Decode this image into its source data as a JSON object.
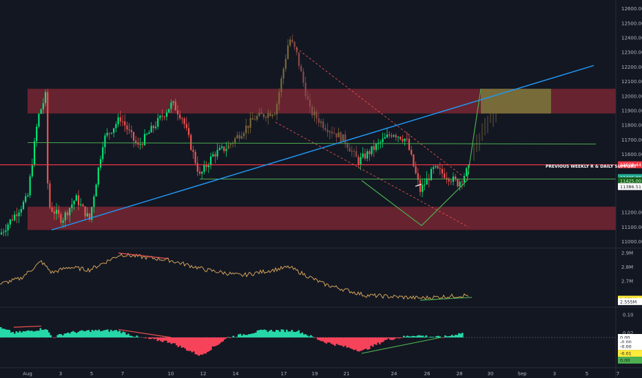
{
  "chart_data": {
    "type": "candlestick",
    "symbol_panel": {
      "y_ticks": [
        "12600.00",
        "12500.00",
        "12400.00",
        "12300.00",
        "12200.00",
        "12100.00",
        "12000.00",
        "11900.00",
        "11800.00",
        "11700.00",
        "11600.00",
        "11200.00",
        "11100.00",
        "11000.00"
      ],
      "ylim": [
        10960,
        12660
      ],
      "price_tags": [
        {
          "label": "11528.44",
          "bg": "#f23645",
          "fg": "#ffffff",
          "value": 11528
        },
        {
          "label": "11425.00",
          "bg": "#22ab94",
          "fg": "#ffffff",
          "value": 11440
        },
        {
          "label": "11425.00",
          "bg": "#1b5e20",
          "fg": "#b6ffb0",
          "value": 11418
        },
        {
          "label": "11386.51",
          "bg": "#ffffff",
          "fg": "#131722",
          "value": 11378
        }
      ],
      "annotation": "PREVIOUS WEEKLY R & DAILY SUPPORT",
      "zones": [
        {
          "name": "resistance",
          "from": 11880,
          "to": 12050,
          "color": "#f23645"
        },
        {
          "name": "support",
          "from": 11080,
          "to": 11240,
          "color": "#f23645"
        }
      ]
    },
    "indicator_1": {
      "y_ticks": [
        "2.9M",
        "2.8M",
        "2.7M"
      ],
      "ylim": [
        2.52,
        2.93
      ],
      "tags": [
        {
          "label": "2.572M",
          "bg": "#ffeb3b",
          "fg": "#131722",
          "value": 2.572
        },
        {
          "label": "2.555M",
          "bg": "#ffffff",
          "fg": "#131722",
          "value": 2.555
        }
      ]
    },
    "indicator_2": {
      "y_ticks": [
        "0.10",
        "0.02"
      ],
      "ylim": [
        -0.13,
        0.13
      ],
      "tags": [
        {
          "label": "0.00",
          "bg": "#ffffff",
          "fg": "#131722",
          "value": 0.0
        },
        {
          "label": "-0.00",
          "bg": "#ffffff",
          "fg": "#131722",
          "value": -0.02
        },
        {
          "label": "-0.00",
          "bg": "#ffffff",
          "fg": "#131722",
          "value": -0.04
        },
        {
          "label": "-0.01",
          "bg": "#ffeb3b",
          "fg": "#131722",
          "value": -0.07
        },
        {
          "label": "0.00",
          "bg": "#4caf50",
          "fg": "#131722",
          "value": -0.1
        }
      ]
    },
    "x_ticks": [
      "Aug",
      "3",
      "5",
      "7",
      "10",
      "12",
      "14",
      "17",
      "19",
      "21",
      "24",
      "26",
      "28",
      "30",
      "Sep",
      "3",
      "5",
      "7"
    ],
    "colors": {
      "up": "#26a69a",
      "down": "#ef5350",
      "green_bright": "#00e676",
      "blue_line": "#2196f3",
      "green_line": "#4caf50",
      "red_line": "#f23645"
    }
  }
}
